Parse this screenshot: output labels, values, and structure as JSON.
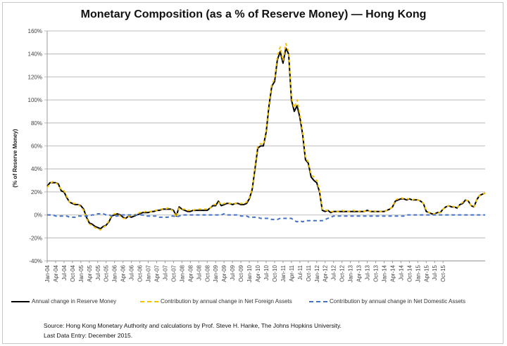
{
  "chart_data": {
    "type": "line",
    "title": "Monetary Composition (as a % of Reserve Money) — Hong Kong",
    "xlabel": "",
    "ylabel": "(% of Reserve Money)",
    "ylim": [
      -40,
      160
    ],
    "yticks": [
      -40,
      -20,
      0,
      20,
      40,
      60,
      80,
      100,
      120,
      140,
      160
    ],
    "ytick_labels": [
      "-40%",
      "-20%",
      "0%",
      "20%",
      "40%",
      "60%",
      "80%",
      "100%",
      "120%",
      "140%",
      "160%"
    ],
    "grid": true,
    "legend_position": "bottom",
    "x_tick_labels": [
      "Jan-04",
      "Apr-04",
      "Jul-04",
      "Oct-04",
      "Jan-05",
      "Apr-05",
      "Jul-05",
      "Oct-05",
      "Jan-06",
      "Apr-06",
      "Jul-06",
      "Oct-06",
      "Jan-07",
      "Apr-07",
      "Jul-07",
      "Oct-07",
      "Jan-08",
      "Apr-08",
      "Jul-08",
      "Oct-08",
      "Jan-09",
      "Apr-09",
      "Jul-09",
      "Oct-09",
      "Jan-10",
      "Apr-10",
      "Jul-10",
      "Oct-10",
      "Jan-11",
      "Apr-11",
      "Jul-11",
      "Oct-11",
      "Jan-12",
      "Apr-12",
      "Jul-12",
      "Oct-12",
      "Jan-13",
      "Apr-13",
      "Jul-13",
      "Oct-13",
      "Jan-14",
      "Apr-14",
      "Jul-14",
      "Oct-14",
      "Jan-15",
      "Apr-15",
      "Jul-15",
      "Oct-15"
    ],
    "x_start": "Jan-04",
    "x_end": "Dec-15",
    "frequency": "monthly",
    "series": [
      {
        "name": "Annual change in Reserve Money",
        "color": "#000000",
        "style": "solid",
        "values": [
          25,
          28,
          28,
          28,
          27,
          21,
          20,
          15,
          11,
          10,
          9,
          9,
          8,
          5,
          -2,
          -7,
          -8,
          -10,
          -11,
          -12,
          -10,
          -9,
          -6,
          -1,
          0,
          1,
          0,
          -2,
          -3,
          -1,
          -2,
          -1,
          0,
          1,
          2,
          2,
          2,
          3,
          3,
          4,
          4,
          5,
          5,
          5,
          5,
          4,
          -1,
          7,
          5,
          4,
          3,
          3,
          4,
          4,
          4,
          4,
          4,
          4,
          6,
          8,
          8,
          12,
          8,
          9,
          10,
          10,
          9,
          10,
          10,
          9,
          9,
          10,
          14,
          22,
          40,
          58,
          60,
          60,
          72,
          95,
          112,
          116,
          135,
          142,
          132,
          145,
          140,
          100,
          90,
          95,
          85,
          70,
          48,
          45,
          33,
          30,
          28,
          20,
          4,
          3,
          4,
          2,
          3,
          3,
          3,
          3,
          3,
          3,
          3,
          3,
          3,
          3,
          3,
          3,
          4,
          3,
          3,
          3,
          3,
          3,
          3,
          4,
          5,
          7,
          12,
          13,
          14,
          14,
          13,
          14,
          13,
          13,
          13,
          12,
          10,
          3,
          2,
          1,
          1,
          2,
          2,
          5,
          7,
          8,
          7,
          7,
          6,
          9,
          10,
          13,
          12,
          8,
          7,
          13,
          17,
          18,
          19
        ]
      },
      {
        "name": "Contribution by annual change in Net Foreign Assets",
        "color": "#f5c200",
        "style": "dashed",
        "values": [
          24,
          27,
          29,
          28,
          26,
          22,
          21,
          16,
          11,
          10,
          10,
          9,
          7,
          4,
          -3,
          -8,
          -9,
          -11,
          -12,
          -13,
          -11,
          -9,
          -5,
          0,
          1,
          1,
          -1,
          -3,
          -3,
          -1,
          -1,
          0,
          1,
          2,
          2,
          3,
          3,
          3,
          4,
          4,
          5,
          5,
          5,
          6,
          5,
          3,
          -2,
          6,
          5,
          5,
          4,
          4,
          4,
          5,
          5,
          5,
          5,
          5,
          6,
          9,
          9,
          11,
          9,
          10,
          10,
          10,
          10,
          10,
          10,
          10,
          10,
          11,
          15,
          23,
          42,
          60,
          62,
          61,
          74,
          97,
          114,
          118,
          138,
          146,
          134,
          149,
          142,
          102,
          93,
          100,
          88,
          72,
          50,
          46,
          35,
          33,
          30,
          21,
          5,
          4,
          4,
          3,
          3,
          3,
          3,
          4,
          3,
          3,
          3,
          4,
          3,
          3,
          4,
          3,
          4,
          3,
          4,
          3,
          3,
          3,
          3,
          4,
          5,
          7,
          13,
          14,
          15,
          14,
          14,
          14,
          13,
          14,
          13,
          12,
          10,
          4,
          2,
          1,
          1,
          2,
          2,
          5,
          7,
          8,
          8,
          7,
          6,
          9,
          11,
          13,
          12,
          8,
          7,
          13,
          17,
          18,
          19
        ]
      },
      {
        "name": "Contribution by annual change in Net Domestic Assets",
        "color": "#4472c4",
        "style": "dashed",
        "values": [
          0,
          0,
          0,
          -1,
          -1,
          -1,
          -1,
          -1,
          -2,
          -2,
          -2,
          -1,
          -1,
          -1,
          -1,
          -1,
          0,
          0,
          1,
          1,
          1,
          0,
          0,
          -1,
          -1,
          -1,
          0,
          0,
          0,
          0,
          0,
          0,
          0,
          0,
          0,
          -1,
          -1,
          -1,
          -1,
          -1,
          -2,
          -2,
          -2,
          -2,
          -1,
          -1,
          -2,
          -1,
          0,
          0,
          0,
          0,
          0,
          0,
          0,
          0,
          0,
          0,
          0,
          0,
          0,
          0,
          0,
          1,
          0,
          0,
          0,
          0,
          0,
          -1,
          -1,
          -1,
          -2,
          -2,
          -2,
          -2,
          -3,
          -3,
          -3,
          -3,
          -4,
          -4,
          -4,
          -3,
          -3,
          -3,
          -3,
          -3,
          -5,
          -6,
          -5,
          -6,
          -5,
          -5,
          -5,
          -5,
          -5,
          -5,
          -5,
          -4,
          -3,
          -2,
          -1,
          -1,
          -1,
          -1,
          -1,
          -1,
          -1,
          -1,
          -1,
          -1,
          -1,
          -1,
          -1,
          -1,
          -1,
          -1,
          -1,
          -1,
          -1,
          -1,
          -1,
          -1,
          -1,
          -1,
          -1,
          -1,
          0,
          0,
          0,
          0,
          0,
          0,
          0,
          0,
          0,
          0,
          0,
          0,
          0,
          0,
          0,
          0,
          0,
          0,
          0,
          0,
          0,
          0,
          0,
          0,
          0,
          0,
          0,
          0,
          0
        ]
      }
    ]
  },
  "footer": {
    "source": "Source: Hong Kong Monetary Authority and calculations by Prof. Steve H. Hanke, The Johns Hopkins University.",
    "last_entry": "Last Data Entry: December 2015."
  }
}
